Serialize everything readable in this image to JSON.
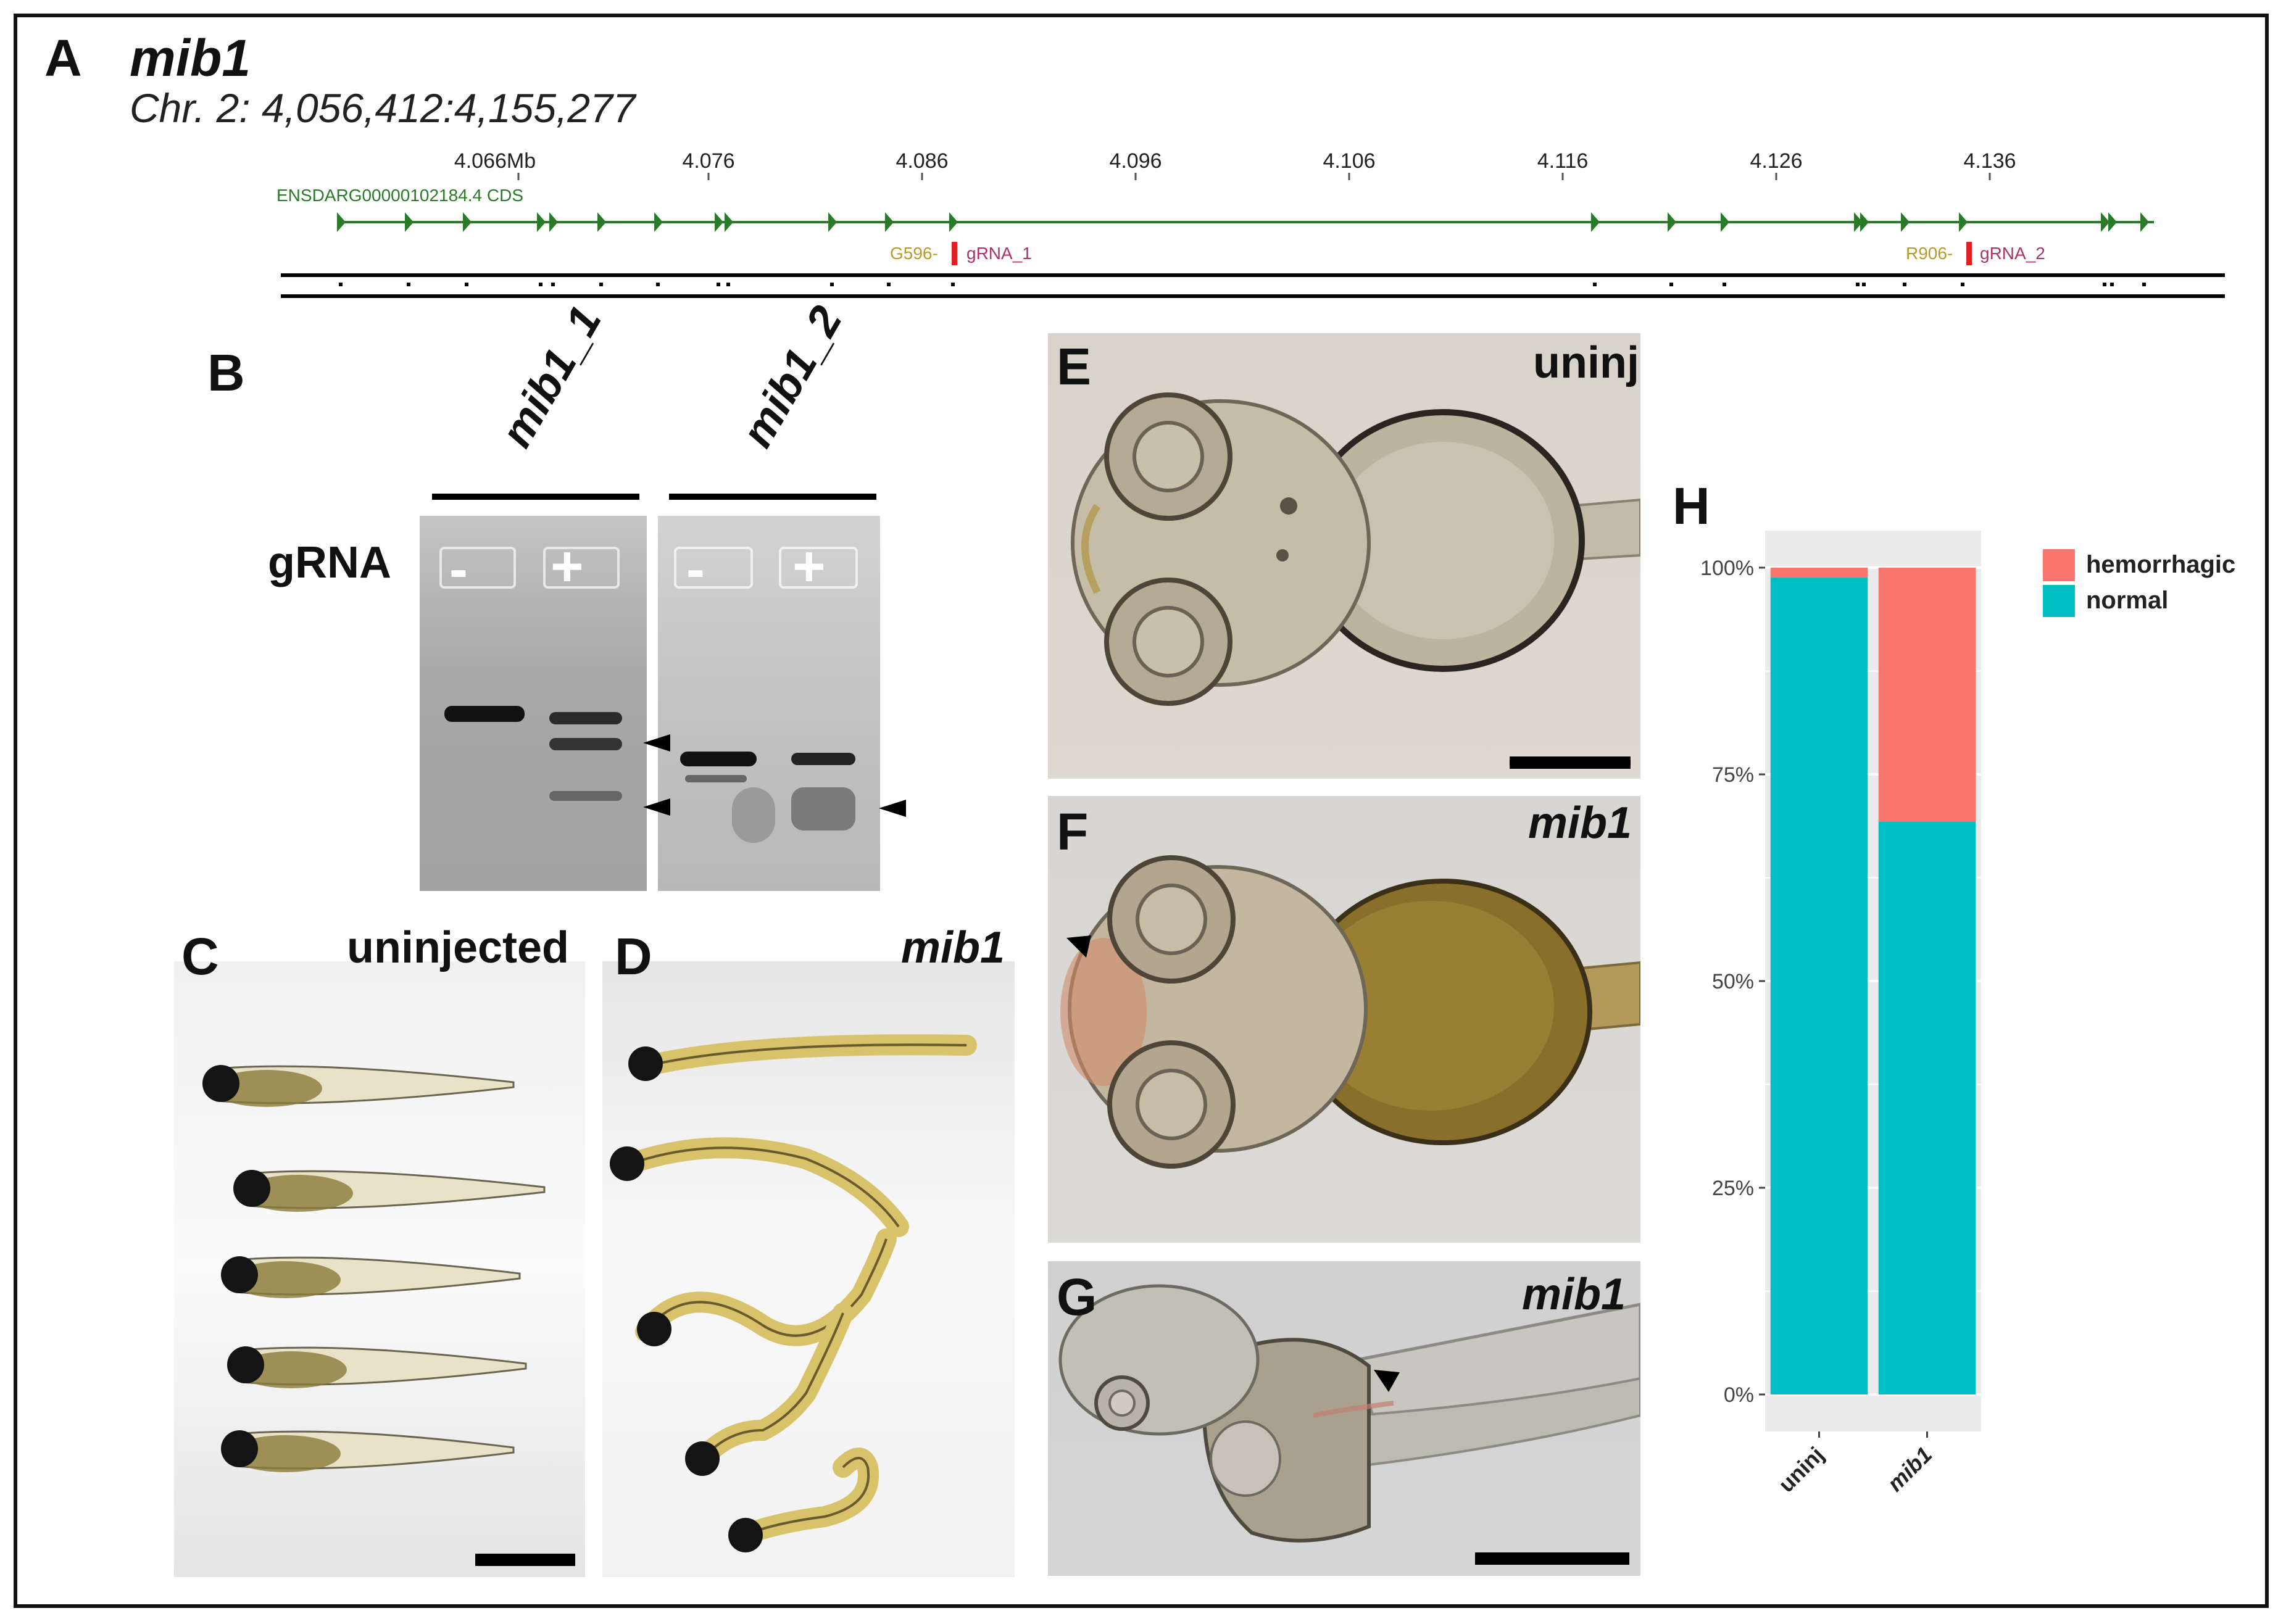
{
  "panel_a": {
    "letter": "A",
    "gene": "mib1",
    "coords": "Chr. 2: 4,056,412:4,155,277",
    "ticks": [
      "4.066Mb",
      "4.076",
      "4.086",
      "4.096",
      "4.106",
      "4.116",
      "4.126",
      "4.136"
    ],
    "transcript": "ENSDARG00000102184.4 CDS",
    "site1_prefix": "G596-",
    "site1_label": "gRNA_1",
    "site2_prefix": "R906-",
    "site2_label": "gRNA_2",
    "colors": {
      "transcript": "#2a7a2a",
      "prefix": "#b89a2a",
      "grna": "#b0306a",
      "cut": "#e02020"
    }
  },
  "panel_b": {
    "letter": "B",
    "lane_group_1": "mib1_1",
    "lane_group_2": "mib1_2",
    "row_label": "gRNA",
    "minus": "-",
    "plus": "+"
  },
  "panel_c": {
    "letter": "C",
    "label": "uninjected"
  },
  "panel_d": {
    "letter": "D",
    "label": "mib1"
  },
  "panel_e": {
    "letter": "E",
    "label": "uninj"
  },
  "panel_f": {
    "letter": "F",
    "label": "mib1"
  },
  "panel_g": {
    "letter": "G",
    "label": "mib1"
  },
  "panel_h": {
    "letter": "H",
    "chart_data": {
      "type": "bar",
      "stacked": true,
      "categories": [
        "uninj",
        "mib1"
      ],
      "series": [
        {
          "name": "normal",
          "values": [
            98.8,
            69.3
          ],
          "color": "#00bfc4"
        },
        {
          "name": "hemorrhagic",
          "values": [
            1.2,
            30.7
          ],
          "color": "#f8766d"
        }
      ],
      "y_ticks": [
        "0%",
        "25%",
        "50%",
        "75%",
        "100%"
      ],
      "ylim": [
        0,
        100
      ],
      "legend": "right",
      "grid": true,
      "background": "#ebebeb"
    }
  }
}
